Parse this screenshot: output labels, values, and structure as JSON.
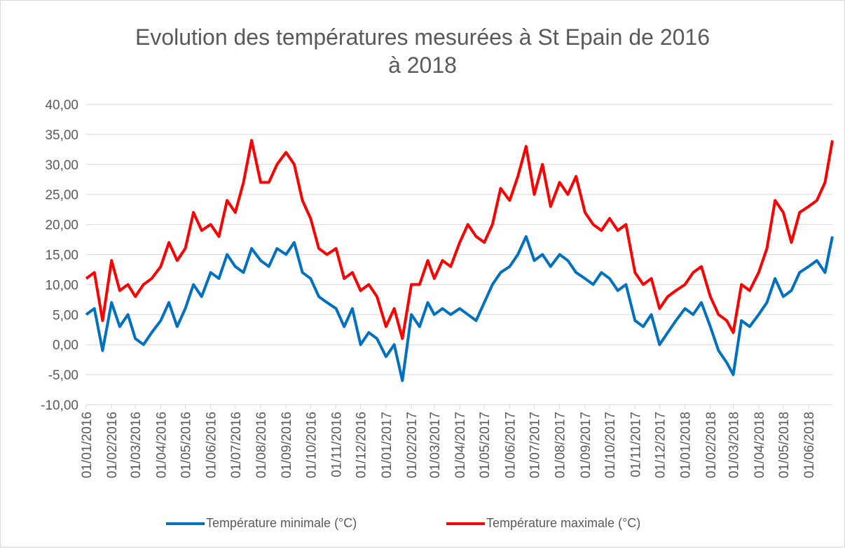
{
  "chart_data": {
    "type": "line",
    "title": "Evolution des températures mesurées à St Epain de 2016 à 2018",
    "x": [
      "01/01/2016",
      "11/01/2016",
      "21/01/2016",
      "01/02/2016",
      "11/02/2016",
      "21/02/2016",
      "01/03/2016",
      "11/03/2016",
      "21/03/2016",
      "01/04/2016",
      "11/04/2016",
      "21/04/2016",
      "01/05/2016",
      "11/05/2016",
      "21/05/2016",
      "01/06/2016",
      "11/06/2016",
      "21/06/2016",
      "01/07/2016",
      "11/07/2016",
      "21/07/2016",
      "01/08/2016",
      "11/08/2016",
      "21/08/2016",
      "01/09/2016",
      "11/09/2016",
      "21/09/2016",
      "01/10/2016",
      "11/10/2016",
      "21/10/2016",
      "01/11/2016",
      "11/11/2016",
      "21/11/2016",
      "01/12/2016",
      "11/12/2016",
      "21/12/2016",
      "01/01/2017",
      "11/01/2017",
      "21/01/2017",
      "01/02/2017",
      "11/02/2017",
      "21/02/2017",
      "01/03/2017",
      "11/03/2017",
      "21/03/2017",
      "01/04/2017",
      "11/04/2017",
      "21/04/2017",
      "01/05/2017",
      "11/05/2017",
      "21/05/2017",
      "01/06/2017",
      "11/06/2017",
      "21/06/2017",
      "01/07/2017",
      "11/07/2017",
      "21/07/2017",
      "01/08/2017",
      "11/08/2017",
      "21/08/2017",
      "01/09/2017",
      "11/09/2017",
      "21/09/2017",
      "01/10/2017",
      "11/10/2017",
      "21/10/2017",
      "01/11/2017",
      "11/11/2017",
      "21/11/2017",
      "01/12/2017",
      "11/12/2017",
      "21/12/2017",
      "01/01/2018",
      "11/01/2018",
      "21/01/2018",
      "01/02/2018",
      "11/02/2018",
      "21/02/2018",
      "01/03/2018",
      "11/03/2018",
      "21/03/2018",
      "01/04/2018",
      "11/04/2018",
      "21/04/2018",
      "01/05/2018",
      "11/05/2018",
      "21/05/2018",
      "01/06/2018",
      "11/06/2018",
      "21/06/2018",
      "30/06/2018"
    ],
    "series": [
      {
        "name": "Température minimale (°C)",
        "color": "#0070c0",
        "values": [
          5,
          6,
          -1,
          7,
          3,
          5,
          1,
          0,
          2,
          4,
          7,
          3,
          6,
          10,
          8,
          12,
          11,
          15,
          13,
          12,
          16,
          14,
          13,
          16,
          15,
          17,
          12,
          11,
          8,
          7,
          6,
          3,
          6,
          0,
          2,
          1,
          -2,
          0,
          -6,
          5,
          3,
          7,
          5,
          6,
          5,
          6,
          5,
          4,
          7,
          10,
          12,
          13,
          15,
          18,
          14,
          15,
          13,
          15,
          14,
          12,
          11,
          10,
          12,
          11,
          9,
          10,
          4,
          3,
          5,
          0,
          2,
          4,
          6,
          5,
          7,
          3,
          -1,
          -3,
          -5,
          4,
          3,
          5,
          7,
          11,
          8,
          9,
          12,
          13,
          14,
          12,
          18
        ]
      },
      {
        "name": "Température maximale (°C)",
        "color": "#ff0000",
        "values": [
          11,
          12,
          4,
          14,
          9,
          10,
          8,
          10,
          11,
          13,
          17,
          14,
          16,
          22,
          19,
          20,
          18,
          24,
          22,
          27,
          34,
          27,
          27,
          30,
          32,
          30,
          24,
          21,
          16,
          15,
          16,
          11,
          12,
          9,
          10,
          8,
          3,
          6,
          1,
          10,
          10,
          14,
          11,
          14,
          13,
          17,
          20,
          18,
          17,
          20,
          26,
          24,
          28,
          33,
          25,
          30,
          23,
          27,
          25,
          28,
          22,
          20,
          19,
          21,
          19,
          20,
          12,
          10,
          11,
          6,
          8,
          9,
          10,
          12,
          13,
          8,
          5,
          4,
          2,
          10,
          9,
          12,
          16,
          24,
          22,
          17,
          22,
          23,
          24,
          27,
          34
        ]
      }
    ],
    "xlim": [
      "01/01/2016",
      "30/06/2018"
    ],
    "xticks": [
      "01/01/2016",
      "01/02/2016",
      "01/03/2016",
      "01/04/2016",
      "01/05/2016",
      "01/06/2016",
      "01/07/2016",
      "01/08/2016",
      "01/09/2016",
      "01/10/2016",
      "01/11/2016",
      "01/12/2016",
      "01/01/2017",
      "01/02/2017",
      "01/03/2017",
      "01/04/2017",
      "01/05/2017",
      "01/06/2017",
      "01/07/2017",
      "01/08/2017",
      "01/09/2017",
      "01/10/2017",
      "01/11/2017",
      "01/12/2017",
      "01/01/2018",
      "01/02/2018",
      "01/03/2018",
      "01/04/2018",
      "01/05/2018",
      "01/06/2018"
    ],
    "ylim": [
      -10,
      40
    ],
    "yticks": [
      {
        "value": -10,
        "label": "-10,00"
      },
      {
        "value": -5,
        "label": "-5,00"
      },
      {
        "value": 0,
        "label": "0,00"
      },
      {
        "value": 5,
        "label": "5,00"
      },
      {
        "value": 10,
        "label": "10,00"
      },
      {
        "value": 15,
        "label": "15,00"
      },
      {
        "value": 20,
        "label": "20,00"
      },
      {
        "value": 25,
        "label": "25,00"
      },
      {
        "value": 30,
        "label": "30,00"
      },
      {
        "value": 35,
        "label": "35,00"
      },
      {
        "value": 40,
        "label": "40,00"
      }
    ],
    "grid": true,
    "legend": "bottom"
  }
}
